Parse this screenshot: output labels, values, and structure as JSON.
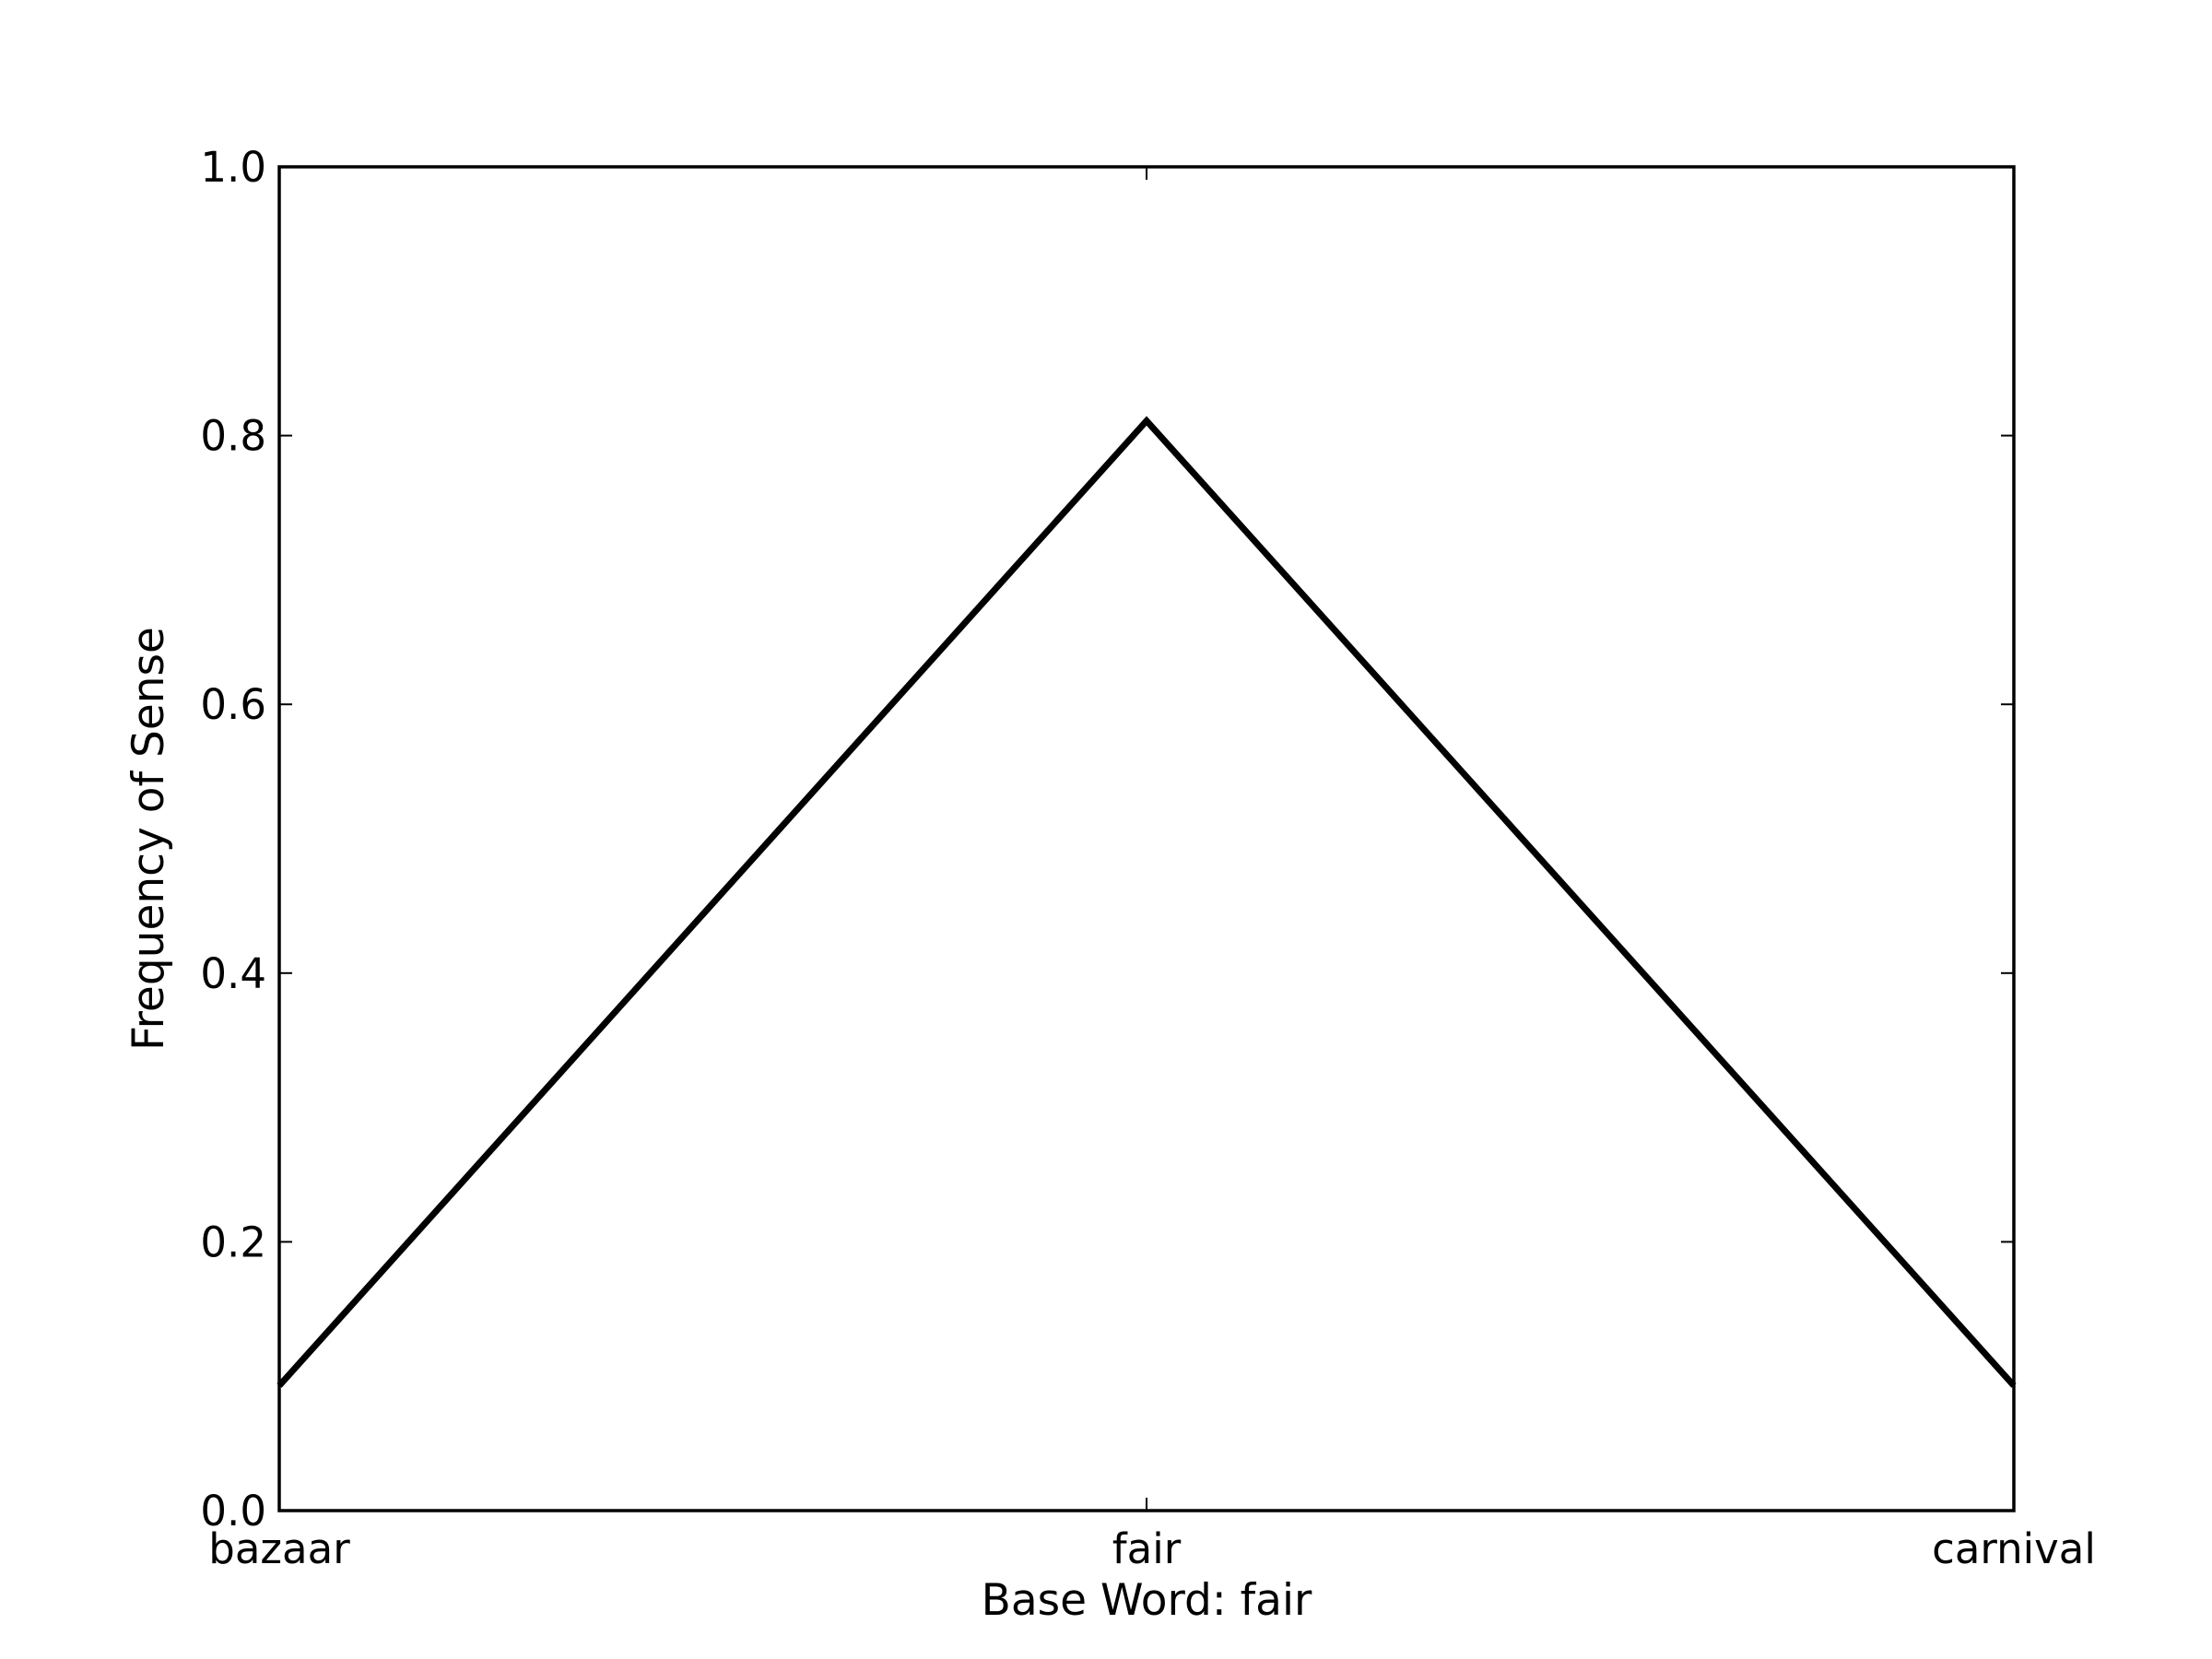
{
  "chart_data": {
    "type": "line",
    "title": "",
    "xlabel": "Base Word: fair",
    "ylabel": "Frequency of Sense",
    "categories": [
      "bazaar",
      "fair",
      "carnival"
    ],
    "series": [
      {
        "values": [
          0.093,
          0.811,
          0.093
        ]
      }
    ],
    "ylim": [
      0.0,
      1.0
    ],
    "yticks": [
      0.0,
      0.2,
      0.4,
      0.6,
      0.8,
      1.0
    ],
    "ytick_labels": [
      "0.0",
      "0.2",
      "0.4",
      "0.6",
      "0.8",
      "1.0"
    ],
    "grid": false,
    "line_color": "#000000"
  }
}
